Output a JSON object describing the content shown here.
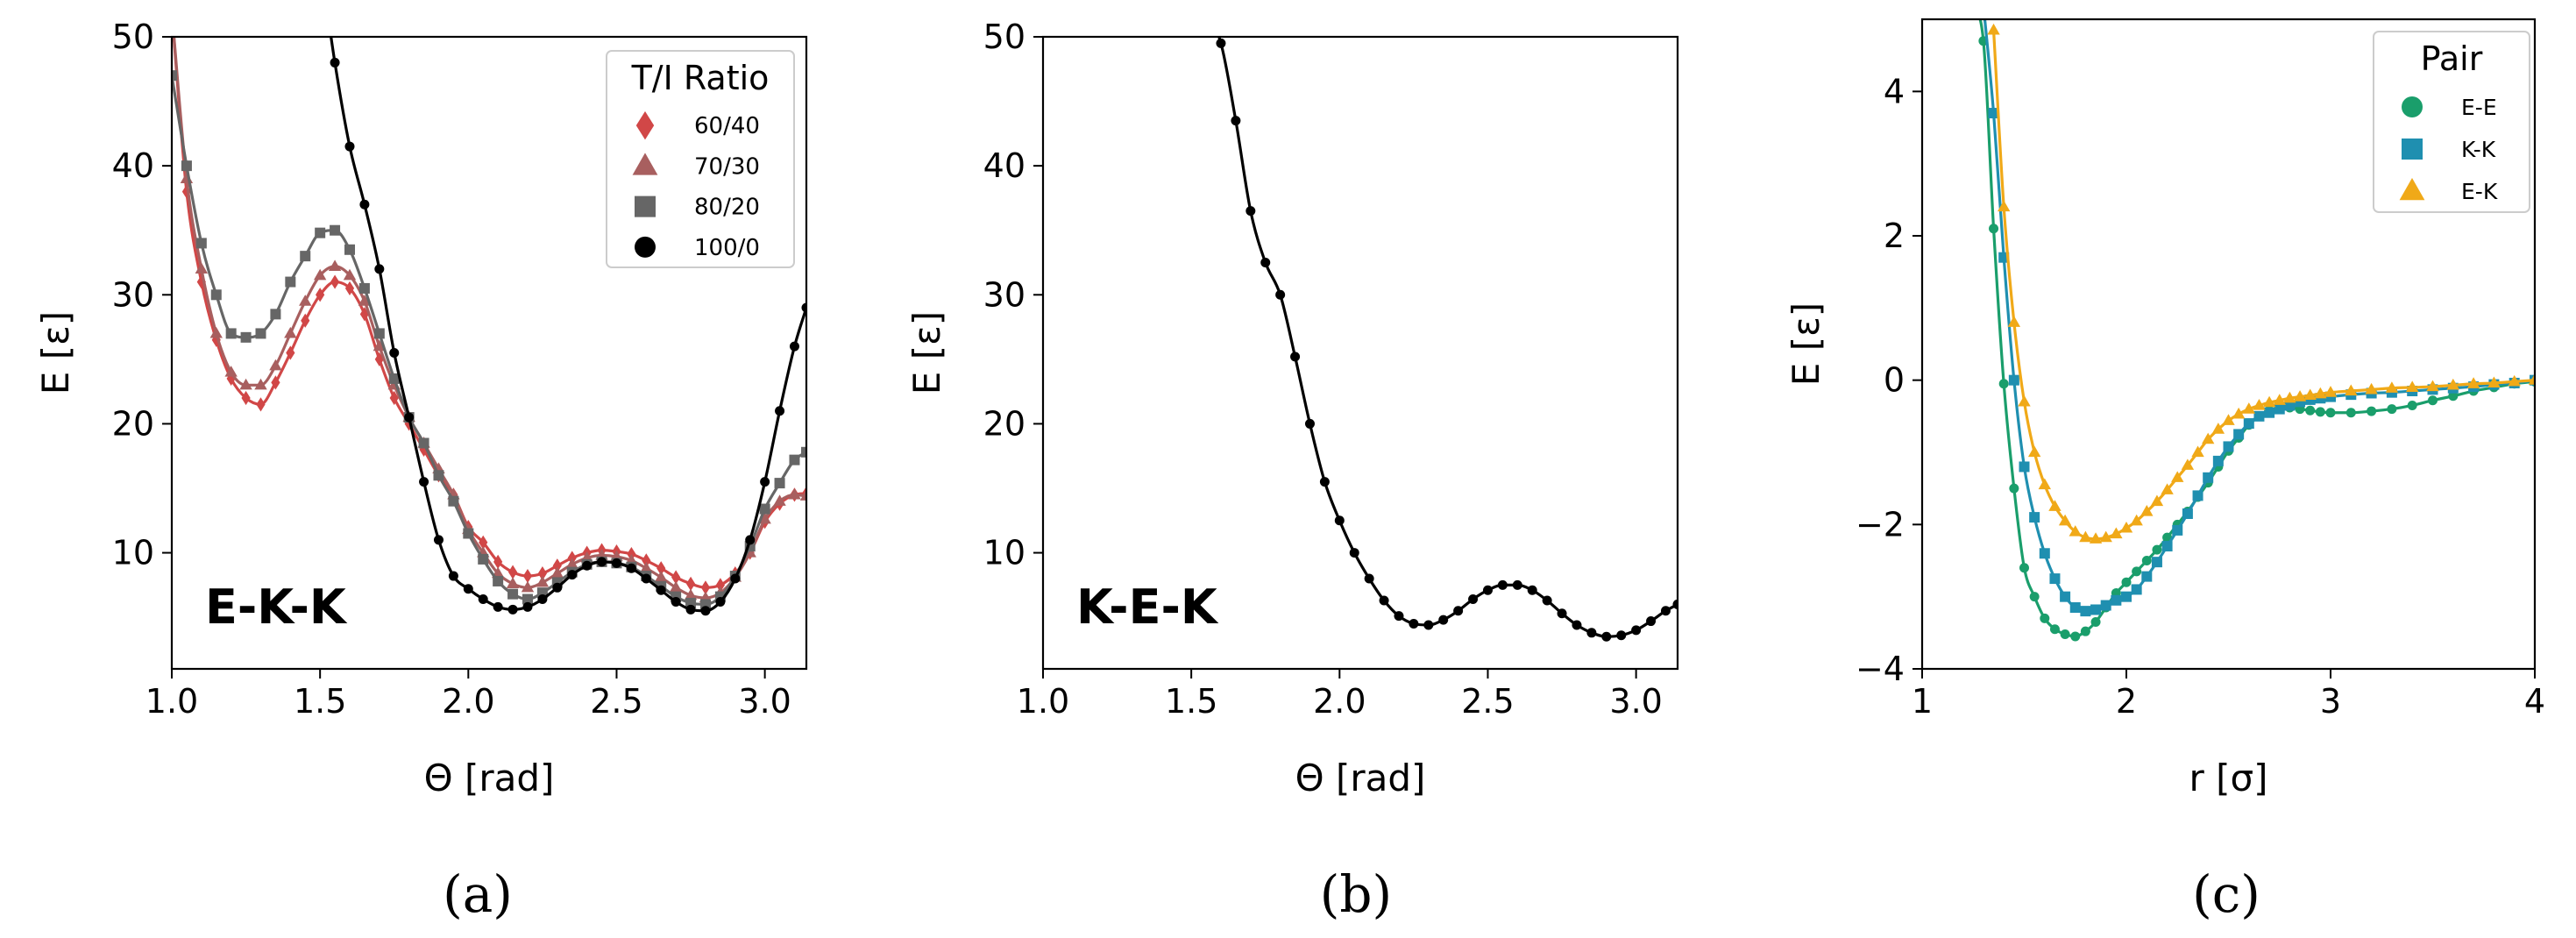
{
  "colors": {
    "c60_40": "#d14747",
    "c70_30": "#a85f5f",
    "c80_20": "#666666",
    "c100_0": "#000000",
    "ee": "#1a9e6b",
    "kk": "#1f8fb0",
    "ek": "#f0a918"
  },
  "chart_data": [
    {
      "type": "line",
      "panel_label": "(a)",
      "annotation": "E-K-K",
      "xlabel": "Θ [rad]",
      "ylabel": "E [ε]",
      "xlim": [
        1.0,
        3.14
      ],
      "ylim": [
        1,
        50
      ],
      "xticks": [
        "1.0",
        "1.5",
        "2.0",
        "2.5",
        "3.0"
      ],
      "yticks": [
        "10",
        "20",
        "30",
        "40",
        "50"
      ],
      "grid": false,
      "legend": {
        "title": "T/I Ratio",
        "placement": "top-right"
      },
      "series": [
        {
          "name": "60/40",
          "marker": "diamond",
          "color_key": "c60_40",
          "x": [
            1.0,
            1.05,
            1.1,
            1.15,
            1.2,
            1.25,
            1.3,
            1.35,
            1.4,
            1.45,
            1.5,
            1.55,
            1.6,
            1.65,
            1.7,
            1.75,
            1.8,
            1.85,
            1.9,
            1.95,
            2.0,
            2.05,
            2.1,
            2.15,
            2.2,
            2.25,
            2.3,
            2.35,
            2.4,
            2.45,
            2.5,
            2.55,
            2.6,
            2.65,
            2.7,
            2.75,
            2.8,
            2.85,
            2.9,
            2.95,
            3.0,
            3.05,
            3.1,
            3.14
          ],
          "values": [
            52,
            38,
            31,
            26.5,
            23.5,
            22,
            21.5,
            23.2,
            25.5,
            28,
            30,
            31,
            30.5,
            28.5,
            25,
            22,
            20,
            18,
            16,
            14.5,
            12,
            10.8,
            9.3,
            8.5,
            8.2,
            8.4,
            9,
            9.6,
            10,
            10.2,
            10.1,
            9.9,
            9.4,
            8.8,
            8.1,
            7.6,
            7.3,
            7.5,
            8.4,
            10,
            12.4,
            13.8,
            14.5,
            14.6
          ]
        },
        {
          "name": "70/30",
          "marker": "triangle",
          "color_key": "c70_30",
          "x": [
            1.0,
            1.05,
            1.1,
            1.15,
            1.2,
            1.25,
            1.3,
            1.35,
            1.4,
            1.45,
            1.5,
            1.55,
            1.6,
            1.65,
            1.7,
            1.75,
            1.8,
            1.85,
            1.9,
            1.95,
            2.0,
            2.05,
            2.1,
            2.15,
            2.2,
            2.25,
            2.3,
            2.35,
            2.4,
            2.45,
            2.5,
            2.55,
            2.6,
            2.65,
            2.7,
            2.75,
            2.8,
            2.85,
            2.9,
            2.95,
            3.0,
            3.05,
            3.1,
            3.14
          ],
          "values": [
            52,
            39,
            32,
            27,
            24,
            23,
            23,
            24.5,
            27,
            29.5,
            31.5,
            32.2,
            31.5,
            29.5,
            26,
            23,
            20.5,
            18.5,
            16.5,
            14.5,
            11.8,
            10,
            8.4,
            7.6,
            7.3,
            7.7,
            8.4,
            9.1,
            9.6,
            9.8,
            9.7,
            9.4,
            8.8,
            8.1,
            7.3,
            6.7,
            6.5,
            6.9,
            8.1,
            10,
            12.6,
            14,
            14.5,
            14.4
          ]
        },
        {
          "name": "80/20",
          "marker": "square",
          "color_key": "c80_20",
          "x": [
            1.0,
            1.05,
            1.1,
            1.15,
            1.2,
            1.25,
            1.3,
            1.35,
            1.4,
            1.45,
            1.5,
            1.55,
            1.6,
            1.65,
            1.7,
            1.75,
            1.8,
            1.85,
            1.9,
            1.95,
            2.0,
            2.05,
            2.1,
            2.15,
            2.2,
            2.25,
            2.3,
            2.35,
            2.4,
            2.45,
            2.5,
            2.55,
            2.6,
            2.65,
            2.7,
            2.75,
            2.8,
            2.85,
            2.9,
            2.95,
            3.0,
            3.05,
            3.1,
            3.14
          ],
          "values": [
            47,
            40,
            34,
            30,
            27,
            26.7,
            27,
            28.5,
            31,
            33,
            34.8,
            35,
            33.5,
            30.5,
            27,
            23.5,
            20.5,
            18.5,
            16,
            14,
            11.5,
            9.5,
            7.8,
            6.8,
            6.4,
            6.9,
            7.7,
            8.5,
            9.1,
            9.3,
            9.2,
            8.9,
            8.2,
            7.4,
            6.6,
            6.1,
            6,
            6.6,
            8.2,
            10.5,
            13.4,
            15.4,
            17.2,
            17.8
          ]
        },
        {
          "name": "100/0",
          "marker": "circle",
          "color_key": "c100_0",
          "x": [
            1.5,
            1.55,
            1.6,
            1.65,
            1.7,
            1.75,
            1.8,
            1.85,
            1.9,
            1.95,
            2.0,
            2.05,
            2.1,
            2.15,
            2.2,
            2.25,
            2.3,
            2.35,
            2.4,
            2.45,
            2.5,
            2.55,
            2.6,
            2.65,
            2.7,
            2.75,
            2.8,
            2.85,
            2.9,
            2.95,
            3.0,
            3.05,
            3.1,
            3.14
          ],
          "values": [
            56,
            48,
            41.5,
            37,
            32,
            25.5,
            20.5,
            15.5,
            11,
            8.2,
            7.2,
            6.4,
            5.8,
            5.6,
            5.8,
            6.4,
            7.3,
            8.3,
            9,
            9.3,
            9.2,
            8.8,
            8,
            7.1,
            6.2,
            5.6,
            5.5,
            6.2,
            8,
            11,
            15.5,
            21,
            26,
            29
          ]
        }
      ]
    },
    {
      "type": "line",
      "panel_label": "(b)",
      "annotation": "K-E-K",
      "xlabel": "Θ [rad]",
      "ylabel": "E [ε]",
      "xlim": [
        1.0,
        3.14
      ],
      "ylim": [
        1,
        50
      ],
      "xticks": [
        "1.0",
        "1.5",
        "2.0",
        "2.5",
        "3.0"
      ],
      "yticks": [
        "10",
        "20",
        "30",
        "40",
        "50"
      ],
      "grid": false,
      "series": [
        {
          "marker": "circle",
          "color_key": "c100_0",
          "x": [
            1.55,
            1.6,
            1.65,
            1.7,
            1.75,
            1.8,
            1.85,
            1.9,
            1.95,
            2.0,
            2.05,
            2.1,
            2.15,
            2.2,
            2.25,
            2.3,
            2.35,
            2.4,
            2.45,
            2.5,
            2.55,
            2.6,
            2.65,
            2.7,
            2.75,
            2.8,
            2.85,
            2.9,
            2.95,
            3.0,
            3.05,
            3.1,
            3.14
          ],
          "values": [
            52,
            49.5,
            43.5,
            36.5,
            32.5,
            30,
            25.2,
            20,
            15.5,
            12.5,
            10,
            8,
            6.3,
            5.1,
            4.5,
            4.4,
            4.8,
            5.5,
            6.4,
            7.1,
            7.5,
            7.5,
            7.1,
            6.3,
            5.3,
            4.4,
            3.8,
            3.5,
            3.6,
            4,
            4.7,
            5.5,
            6
          ]
        }
      ]
    },
    {
      "type": "line",
      "panel_label": "(c)",
      "xlabel": "r [σ]",
      "ylabel": "E [ε]",
      "xlim": [
        1,
        4
      ],
      "ylim": [
        -4,
        5
      ],
      "xticks": [
        "1",
        "2",
        "3",
        "4"
      ],
      "yticks": [
        "−4",
        "−2",
        "0",
        "2",
        "4"
      ],
      "grid": false,
      "legend": {
        "title": "Pair",
        "placement": "top-right"
      },
      "series": [
        {
          "name": "E-E",
          "marker": "circle",
          "color_key": "ee",
          "x": [
            1.25,
            1.3,
            1.35,
            1.4,
            1.45,
            1.5,
            1.55,
            1.6,
            1.65,
            1.7,
            1.75,
            1.8,
            1.85,
            1.9,
            1.95,
            2.0,
            2.05,
            2.1,
            2.15,
            2.2,
            2.25,
            2.3,
            2.35,
            2.4,
            2.45,
            2.5,
            2.55,
            2.6,
            2.65,
            2.7,
            2.75,
            2.8,
            2.85,
            2.9,
            2.95,
            3.0,
            3.1,
            3.2,
            3.3,
            3.4,
            3.5,
            3.6,
            3.7,
            3.8,
            3.9,
            4.0
          ],
          "values": [
            5.2,
            4.7,
            2.1,
            -0.05,
            -1.5,
            -2.6,
            -3.0,
            -3.3,
            -3.45,
            -3.52,
            -3.55,
            -3.48,
            -3.35,
            -3.15,
            -2.95,
            -2.8,
            -2.65,
            -2.5,
            -2.35,
            -2.18,
            -2.0,
            -1.82,
            -1.62,
            -1.42,
            -1.2,
            -0.98,
            -0.8,
            -0.62,
            -0.5,
            -0.42,
            -0.38,
            -0.38,
            -0.4,
            -0.42,
            -0.44,
            -0.45,
            -0.45,
            -0.43,
            -0.4,
            -0.35,
            -0.28,
            -0.22,
            -0.15,
            -0.1,
            -0.05,
            -0.02
          ]
        },
        {
          "name": "K-K",
          "marker": "square",
          "color_key": "kk",
          "x": [
            1.3,
            1.35,
            1.4,
            1.45,
            1.5,
            1.55,
            1.6,
            1.65,
            1.7,
            1.75,
            1.8,
            1.85,
            1.9,
            1.95,
            2.0,
            2.05,
            2.1,
            2.15,
            2.2,
            2.25,
            2.3,
            2.35,
            2.4,
            2.45,
            2.5,
            2.55,
            2.6,
            2.65,
            2.7,
            2.75,
            2.8,
            2.85,
            2.9,
            2.95,
            3.0,
            3.1,
            3.2,
            3.3,
            3.4,
            3.5,
            3.6,
            3.7,
            3.8,
            3.9,
            4.0
          ],
          "values": [
            5.2,
            3.7,
            1.7,
            0.0,
            -1.2,
            -1.9,
            -2.4,
            -2.75,
            -3.0,
            -3.15,
            -3.2,
            -3.18,
            -3.12,
            -3.05,
            -3.0,
            -2.9,
            -2.72,
            -2.52,
            -2.3,
            -2.08,
            -1.85,
            -1.6,
            -1.35,
            -1.12,
            -0.92,
            -0.75,
            -0.6,
            -0.5,
            -0.45,
            -0.4,
            -0.35,
            -0.3,
            -0.27,
            -0.25,
            -0.23,
            -0.2,
            -0.18,
            -0.17,
            -0.15,
            -0.13,
            -0.11,
            -0.09,
            -0.06,
            -0.04,
            0.0
          ]
        },
        {
          "name": "E-K",
          "marker": "triangle",
          "color_key": "ek",
          "x": [
            1.35,
            1.4,
            1.45,
            1.5,
            1.55,
            1.6,
            1.65,
            1.7,
            1.75,
            1.8,
            1.85,
            1.9,
            1.95,
            2.0,
            2.05,
            2.1,
            2.15,
            2.2,
            2.25,
            2.3,
            2.35,
            2.4,
            2.45,
            2.5,
            2.55,
            2.6,
            2.65,
            2.7,
            2.75,
            2.8,
            2.85,
            2.9,
            2.95,
            3.0,
            3.1,
            3.2,
            3.3,
            3.4,
            3.5,
            3.6,
            3.7,
            3.8,
            3.9,
            4.0
          ],
          "values": [
            4.85,
            2.4,
            0.8,
            -0.3,
            -1.0,
            -1.45,
            -1.75,
            -1.95,
            -2.1,
            -2.18,
            -2.2,
            -2.18,
            -2.13,
            -2.05,
            -1.95,
            -1.82,
            -1.68,
            -1.52,
            -1.35,
            -1.18,
            -1.0,
            -0.82,
            -0.68,
            -0.56,
            -0.47,
            -0.4,
            -0.35,
            -0.31,
            -0.28,
            -0.25,
            -0.23,
            -0.21,
            -0.19,
            -0.17,
            -0.15,
            -0.13,
            -0.11,
            -0.1,
            -0.09,
            -0.07,
            -0.05,
            -0.04,
            -0.02,
            0.0
          ]
        }
      ]
    }
  ]
}
